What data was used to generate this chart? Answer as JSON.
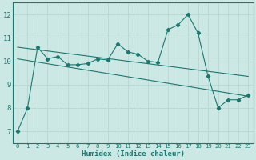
{
  "xlabel": "Humidex (Indice chaleur)",
  "ylabel": "",
  "xlim": [
    -0.5,
    23.5
  ],
  "ylim": [
    6.5,
    12.5
  ],
  "xticks": [
    0,
    1,
    2,
    3,
    4,
    5,
    6,
    7,
    8,
    9,
    10,
    11,
    12,
    13,
    14,
    15,
    16,
    17,
    18,
    19,
    20,
    21,
    22,
    23
  ],
  "yticks": [
    7,
    8,
    9,
    10,
    11,
    12
  ],
  "bg_color": "#cce8e4",
  "line_color": "#1a7870",
  "grid_color": "#b8d8d4",
  "line1_x": [
    0,
    1,
    2,
    3,
    4,
    5,
    6,
    7,
    8,
    9,
    10,
    11,
    12,
    13,
    14,
    15,
    16,
    17,
    18,
    19,
    20,
    21,
    22,
    23
  ],
  "line1_y": [
    7.0,
    8.0,
    10.6,
    10.1,
    10.2,
    9.85,
    9.85,
    9.9,
    10.1,
    10.05,
    10.75,
    10.4,
    10.3,
    10.0,
    9.95,
    11.35,
    11.55,
    12.0,
    11.2,
    9.35,
    8.0,
    8.35,
    8.35,
    8.55
  ],
  "line2_x": [
    0,
    23
  ],
  "line2_y": [
    10.6,
    9.35
  ],
  "line3_x": [
    0,
    23
  ],
  "line3_y": [
    10.1,
    8.5
  ]
}
